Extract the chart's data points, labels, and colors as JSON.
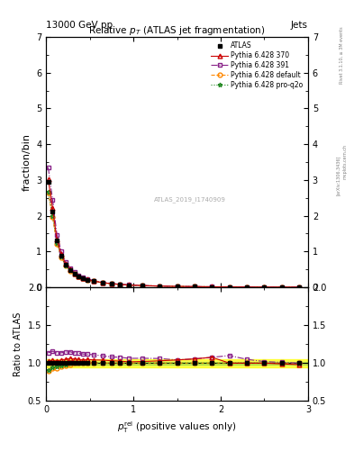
{
  "title": "Relative $p_T$ (ATLAS jet fragmentation)",
  "header_left": "13000 GeV pp",
  "header_right": "Jets",
  "ylabel_main": "fraction/bin",
  "ylabel_ratio": "Ratio to ATLAS",
  "watermark": "ATLAS_2019_I1740909",
  "rivet_text": "Rivet 3.1.10, ≥ 3M events",
  "arxiv_text": "[arXiv:1306.3436]",
  "mcplots_text": "mcplots.cern.ch",
  "xlim": [
    0,
    3
  ],
  "ylim_main": [
    0,
    7
  ],
  "ylim_ratio": [
    0.5,
    2
  ],
  "x_data": [
    0.025,
    0.075,
    0.125,
    0.175,
    0.225,
    0.275,
    0.325,
    0.375,
    0.425,
    0.475,
    0.55,
    0.65,
    0.75,
    0.85,
    0.95,
    1.1,
    1.3,
    1.5,
    1.7,
    1.9,
    2.1,
    2.3,
    2.5,
    2.7,
    2.9
  ],
  "atlas_y": [
    2.95,
    2.12,
    1.3,
    0.88,
    0.62,
    0.47,
    0.37,
    0.3,
    0.25,
    0.21,
    0.165,
    0.125,
    0.097,
    0.077,
    0.063,
    0.047,
    0.033,
    0.024,
    0.018,
    0.013,
    0.01,
    0.008,
    0.006,
    0.005,
    0.004
  ],
  "py370_y": [
    3.02,
    2.21,
    1.33,
    0.92,
    0.65,
    0.5,
    0.39,
    0.315,
    0.26,
    0.22,
    0.172,
    0.13,
    0.1,
    0.079,
    0.064,
    0.048,
    0.034,
    0.025,
    0.019,
    0.014,
    0.01,
    0.008,
    0.006,
    0.005,
    0.004
  ],
  "py391_y": [
    3.35,
    2.45,
    1.47,
    1.0,
    0.71,
    0.54,
    0.42,
    0.34,
    0.28,
    0.235,
    0.183,
    0.137,
    0.105,
    0.083,
    0.067,
    0.05,
    0.035,
    0.025,
    0.019,
    0.014,
    0.011,
    0.008,
    0.006,
    0.005,
    0.004
  ],
  "pydef_y": [
    2.65,
    1.97,
    1.22,
    0.84,
    0.6,
    0.46,
    0.37,
    0.3,
    0.25,
    0.21,
    0.165,
    0.125,
    0.097,
    0.077,
    0.063,
    0.047,
    0.033,
    0.024,
    0.018,
    0.013,
    0.01,
    0.008,
    0.006,
    0.005,
    0.004
  ],
  "pyq2o_y": [
    2.68,
    2.0,
    1.24,
    0.85,
    0.61,
    0.47,
    0.37,
    0.3,
    0.25,
    0.21,
    0.165,
    0.125,
    0.097,
    0.077,
    0.063,
    0.047,
    0.033,
    0.024,
    0.018,
    0.013,
    0.01,
    0.008,
    0.006,
    0.005,
    0.004
  ],
  "py370_ratio": [
    1.023,
    1.042,
    1.023,
    1.045,
    1.048,
    1.064,
    1.054,
    1.05,
    1.04,
    1.048,
    1.042,
    1.04,
    1.031,
    1.026,
    1.016,
    1.021,
    1.03,
    1.042,
    1.056,
    1.077,
    1.0,
    1.0,
    1.0,
    0.99,
    0.98
  ],
  "py391_ratio": [
    1.136,
    1.156,
    1.131,
    1.136,
    1.145,
    1.149,
    1.135,
    1.133,
    1.12,
    1.119,
    1.109,
    1.096,
    1.082,
    1.078,
    1.063,
    1.064,
    1.061,
    1.042,
    1.056,
    1.077,
    1.1,
    1.05,
    1.02,
    1.01,
    1.0
  ],
  "pydef_ratio": [
    0.898,
    0.929,
    0.938,
    0.955,
    0.968,
    0.979,
    1.0,
    1.0,
    1.0,
    1.0,
    1.0,
    1.0,
    1.0,
    1.0,
    1.0,
    1.0,
    1.0,
    1.0,
    1.0,
    1.0,
    1.0,
    1.0,
    1.0,
    1.0,
    1.0
  ],
  "pyq2o_ratio": [
    0.908,
    0.943,
    0.954,
    0.966,
    0.984,
    1.0,
    1.0,
    1.0,
    1.0,
    1.0,
    1.0,
    1.0,
    1.0,
    1.0,
    1.0,
    1.0,
    1.0,
    1.0,
    1.0,
    1.0,
    1.0,
    1.0,
    1.0,
    1.0,
    1.0
  ],
  "atlas_color": "#000000",
  "py370_color": "#cc0000",
  "py391_color": "#882288",
  "pydef_color": "#ff8800",
  "pyq2o_color": "#228822",
  "band_color_yellow": "#ffff00",
  "band_color_green": "#88cc44",
  "atlas_marker": "s",
  "py370_marker": "^",
  "py391_marker": "s",
  "pydef_marker": "o",
  "pyq2o_marker": "*",
  "legend_labels": [
    "ATLAS",
    "Pythia 6.428 370",
    "Pythia 6.428 391",
    "Pythia 6.428 default",
    "Pythia 6.428 pro-q2o"
  ]
}
